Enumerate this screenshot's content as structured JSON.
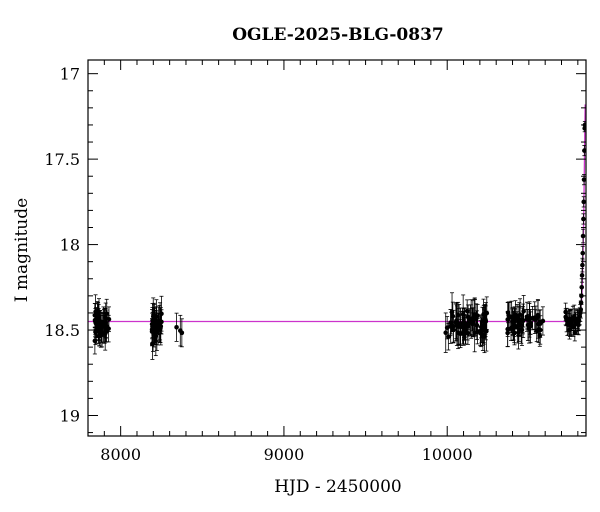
{
  "chart_data": {
    "type": "scatter",
    "title": "OGLE-2025-BLG-0837",
    "xlabel": "HJD - 2450000",
    "ylabel": "I magnitude",
    "xlim": [
      7800,
      10850
    ],
    "ylim": [
      19.12,
      16.92
    ],
    "y_inverted": true,
    "grid": false,
    "xticks_major": [
      8000,
      9000,
      10000
    ],
    "xtick_labels": [
      "8000",
      "9000",
      "10000"
    ],
    "yticks_major": [
      17,
      17.5,
      18,
      18.5,
      19
    ],
    "ytick_labels": [
      "17",
      "17.5",
      "18",
      "18.5",
      "19"
    ],
    "baseline_mag": 18.45,
    "model_color": "#cc33cc",
    "point_color": "#000000",
    "series": [
      {
        "kind": "observations",
        "segments": [
          {
            "x_start": 7840,
            "x_end": 7930,
            "count": 45,
            "mean": 18.47,
            "spread": 0.05,
            "err": 0.08,
            "seed": 11
          },
          {
            "x_start": 8190,
            "x_end": 8250,
            "count": 32,
            "mean": 18.48,
            "spread": 0.06,
            "err": 0.09,
            "seed": 23
          },
          {
            "x_start": 8330,
            "x_end": 8380,
            "count": 3,
            "mean": 18.52,
            "spread": 0.03,
            "err": 0.07,
            "seed": 31
          },
          {
            "x_start": 9990,
            "x_end": 10250,
            "count": 70,
            "mean": 18.47,
            "spread": 0.06,
            "err": 0.09,
            "seed": 47
          },
          {
            "x_start": 10370,
            "x_end": 10600,
            "count": 55,
            "mean": 18.46,
            "spread": 0.05,
            "err": 0.08,
            "seed": 59
          },
          {
            "x_start": 10720,
            "x_end": 10810,
            "count": 28,
            "mean": 18.45,
            "spread": 0.04,
            "err": 0.06,
            "seed": 71
          }
        ],
        "rise_points": [
          {
            "x": 10812,
            "y": 18.42,
            "err": 0.05
          },
          {
            "x": 10815,
            "y": 18.4,
            "err": 0.05
          },
          {
            "x": 10818,
            "y": 18.38,
            "err": 0.05
          },
          {
            "x": 10820,
            "y": 18.34,
            "err": 0.05
          },
          {
            "x": 10822,
            "y": 18.3,
            "err": 0.05
          },
          {
            "x": 10824,
            "y": 18.25,
            "err": 0.05
          },
          {
            "x": 10826,
            "y": 18.18,
            "err": 0.04
          },
          {
            "x": 10828,
            "y": 18.12,
            "err": 0.04
          },
          {
            "x": 10830,
            "y": 18.05,
            "err": 0.04
          },
          {
            "x": 10832,
            "y": 17.95,
            "err": 0.04
          },
          {
            "x": 10834,
            "y": 17.85,
            "err": 0.03
          },
          {
            "x": 10836,
            "y": 17.75,
            "err": 0.03
          },
          {
            "x": 10838,
            "y": 17.62,
            "err": 0.03
          },
          {
            "x": 10840,
            "y": 17.45,
            "err": 0.03
          },
          {
            "x": 10842,
            "y": 17.32,
            "err": 0.02
          },
          {
            "x": 10843,
            "y": 17.3,
            "err": 0.02
          }
        ]
      },
      {
        "kind": "model",
        "points": [
          {
            "x": 7800,
            "y": 18.45
          },
          {
            "x": 10780,
            "y": 18.45
          },
          {
            "x": 10800,
            "y": 18.44
          },
          {
            "x": 10815,
            "y": 18.41
          },
          {
            "x": 10825,
            "y": 18.3
          },
          {
            "x": 10832,
            "y": 18.05
          },
          {
            "x": 10836,
            "y": 17.85
          },
          {
            "x": 10840,
            "y": 17.55
          },
          {
            "x": 10843,
            "y": 17.3
          },
          {
            "x": 10845,
            "y": 17.18
          }
        ]
      }
    ]
  }
}
